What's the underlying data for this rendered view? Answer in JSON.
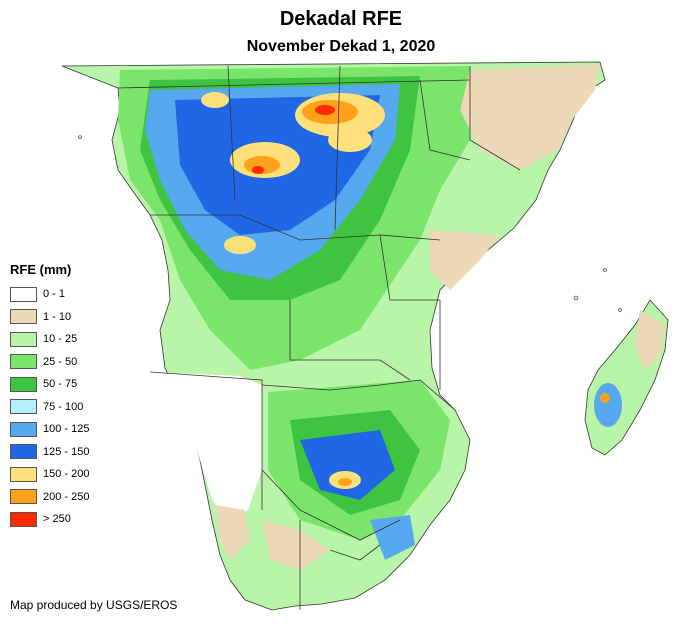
{
  "map": {
    "title": "Dekadal RFE",
    "subtitle": "November Dekad 1, 2020",
    "credit": "Map produced by USGS/EROS"
  },
  "legend": {
    "title": "RFE (mm)",
    "items": [
      {
        "label": "0 - 1",
        "color": "#ffffff"
      },
      {
        "label": "1 - 10",
        "color": "#ecd9b8"
      },
      {
        "label": "10 - 25",
        "color": "#b9f5a9"
      },
      {
        "label": "25 - 50",
        "color": "#7be56b"
      },
      {
        "label": "50 - 75",
        "color": "#3fc441"
      },
      {
        "label": "75 - 100",
        "color": "#b4f0f8"
      },
      {
        "label": "100 - 125",
        "color": "#56a9ee"
      },
      {
        "label": "125 - 150",
        "color": "#1f67e4"
      },
      {
        "label": "150 - 200",
        "color": "#ffe07a"
      },
      {
        "label": "200 - 250",
        "color": "#ffa11a"
      },
      {
        "label": "> 250",
        "color": "#ff2a00"
      }
    ]
  }
}
